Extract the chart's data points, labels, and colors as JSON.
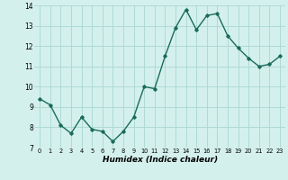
{
  "x": [
    0,
    1,
    2,
    3,
    4,
    5,
    6,
    7,
    8,
    9,
    10,
    11,
    12,
    13,
    14,
    15,
    16,
    17,
    18,
    19,
    20,
    21,
    22,
    23
  ],
  "y": [
    9.4,
    9.1,
    8.1,
    7.7,
    8.5,
    7.9,
    7.8,
    7.3,
    7.8,
    8.5,
    10.0,
    9.9,
    11.5,
    12.9,
    13.8,
    12.8,
    13.5,
    13.6,
    12.5,
    11.9,
    11.4,
    11.0,
    11.1,
    11.5
  ],
  "xlabel": "Humidex (Indice chaleur)",
  "ylim": [
    7,
    14
  ],
  "xlim": [
    -0.5,
    23.5
  ],
  "yticks": [
    7,
    8,
    9,
    10,
    11,
    12,
    13,
    14
  ],
  "xticks": [
    0,
    1,
    2,
    3,
    4,
    5,
    6,
    7,
    8,
    9,
    10,
    11,
    12,
    13,
    14,
    15,
    16,
    17,
    18,
    19,
    20,
    21,
    22,
    23
  ],
  "line_color": "#1a6b5a",
  "marker": "D",
  "marker_size": 1.8,
  "bg_color": "#d4f0ec",
  "grid_color": "#a8d8d0",
  "line_width": 1.0
}
